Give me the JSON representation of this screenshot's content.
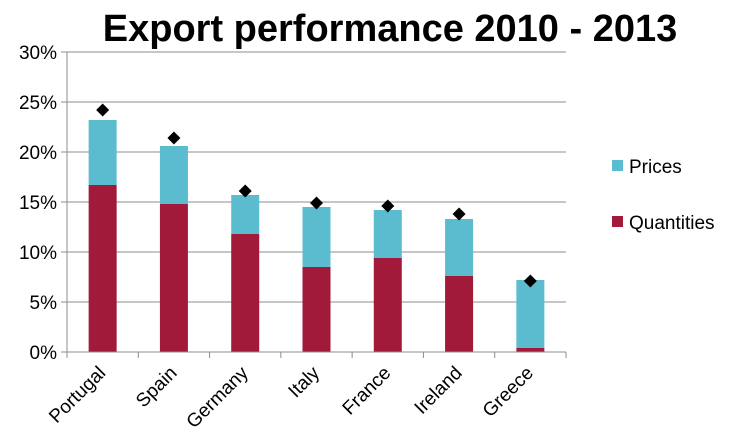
{
  "chart_data": {
    "type": "bar",
    "stacked": true,
    "title": "Export performance 2010 - 2013",
    "categories": [
      "Portugal",
      "Spain",
      "Germany",
      "Italy",
      "France",
      "Ireland",
      "Greece"
    ],
    "series": [
      {
        "name": "Quantities",
        "color": "#A21A3A",
        "values": [
          16.7,
          14.8,
          11.8,
          8.5,
          9.4,
          7.6,
          0.4
        ]
      },
      {
        "name": "Prices",
        "color": "#5BBCCF",
        "values": [
          6.5,
          5.8,
          3.9,
          6.0,
          4.8,
          5.7,
          6.8
        ]
      }
    ],
    "markers": {
      "shape": "diamond",
      "color": "#000000",
      "values": [
        24.2,
        21.4,
        16.1,
        14.9,
        14.6,
        13.8,
        7.1
      ]
    },
    "ylim": [
      0,
      30
    ],
    "yticks": [
      "0%",
      "5%",
      "10%",
      "15%",
      "20%",
      "25%",
      "30%"
    ],
    "grid": true,
    "legend_position": "right"
  }
}
